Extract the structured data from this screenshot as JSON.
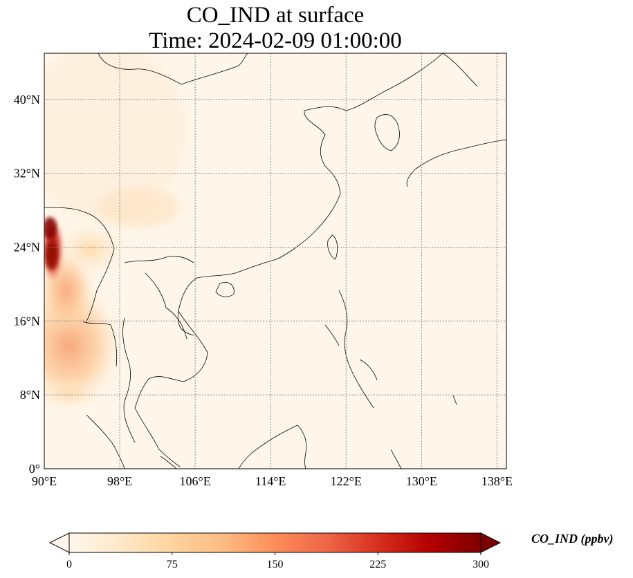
{
  "title": {
    "line1": "CO_IND at surface",
    "line2": "Time: 2024-02-09 01:00:00"
  },
  "map": {
    "variable": "CO_IND",
    "lon_range": [
      90,
      139
    ],
    "lat_range": [
      0,
      45
    ],
    "lon_ticks": [
      90,
      98,
      106,
      114,
      122,
      130,
      138
    ],
    "lat_ticks": [
      0,
      8,
      16,
      24,
      32,
      40
    ],
    "lon_tick_labels": [
      "90°E",
      "98°E",
      "106°E",
      "114°E",
      "122°E",
      "130°E",
      "138°E"
    ],
    "lat_tick_labels": [
      "0°",
      "8°N",
      "16°N",
      "24°N",
      "32°N",
      "40°N"
    ],
    "gridlines": true,
    "colormap": "OrRd",
    "colormap_colors": [
      "#fff7ec",
      "#fee8c8",
      "#fdd49e",
      "#fdbb84",
      "#fc8d59",
      "#ef6548",
      "#d7301f",
      "#b30000",
      "#7f0000"
    ]
  },
  "colorbar": {
    "label": "CO_IND (ppbv)",
    "min": 0,
    "max": 300,
    "ticks": [
      0,
      75,
      150,
      225,
      300
    ],
    "tick_labels": [
      "0",
      "75",
      "150",
      "225",
      "300"
    ],
    "extend": "both"
  }
}
